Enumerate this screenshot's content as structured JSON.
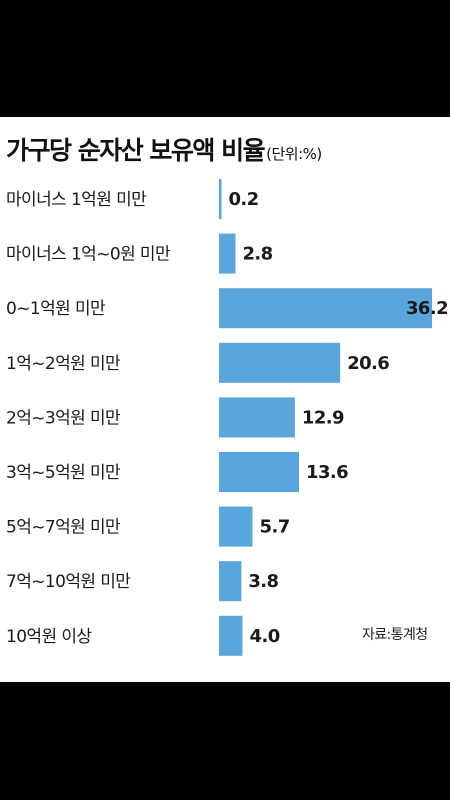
{
  "chart_data": {
    "type": "bar",
    "orientation": "horizontal",
    "title": "가구당 순자산 보유액 비율",
    "unit_label": "(단위:%)",
    "categories": [
      "마이너스 1억원 미만",
      "마이너스 1억~0원 미만",
      "0~1억원 미만",
      "1억~2억원 미만",
      "2억~3억원 미만",
      "3억~5억원 미만",
      "5억~7억원 미만",
      "7억~10억원 미만",
      "10억원 이상"
    ],
    "values": [
      0.2,
      2.8,
      36.2,
      20.6,
      12.9,
      13.6,
      5.7,
      3.8,
      4.0
    ],
    "value_labels": [
      "0.2",
      "2.8",
      "36.2",
      "20.6",
      "12.9",
      "13.6",
      "5.7",
      "3.8",
      "4.0"
    ],
    "bar_color": "#5aa5dc",
    "grid": false,
    "source": "자료:통계청"
  }
}
